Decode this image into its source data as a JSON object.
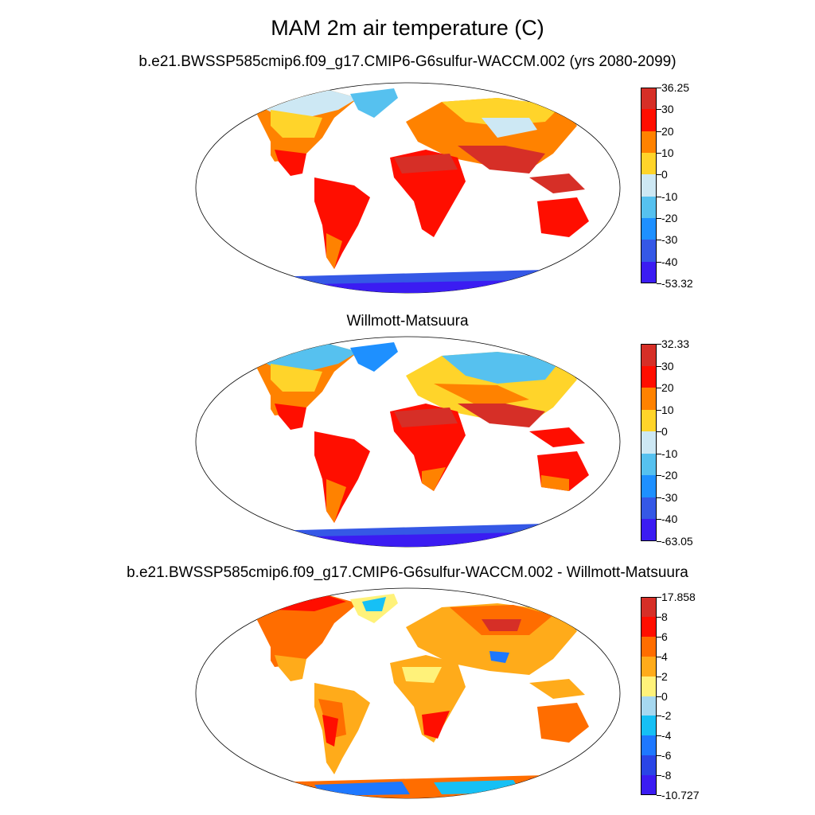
{
  "figure_title": "MAM 2m air temperature (C)",
  "panels": [
    {
      "title": "b.e21.BWSSP585cmip6.f09_g17.CMIP6-G6sulfur-WACCM.002 (yrs 2080-2099)",
      "colorbar": {
        "labels": [
          "36.25",
          "30",
          "20",
          "10",
          "0",
          "-10",
          "-20",
          "-30",
          "-40",
          "-53.32"
        ],
        "colors": [
          "#d62f27",
          "#ff0e00",
          "#ff8200",
          "#ffd42a",
          "#cde8f4",
          "#56c1ef",
          "#1e90ff",
          "#3558e6",
          "#3b1cf2"
        ]
      }
    },
    {
      "title": "Willmott-Matsuura",
      "colorbar": {
        "labels": [
          "32.33",
          "30",
          "20",
          "10",
          "0",
          "-10",
          "-20",
          "-30",
          "-40",
          "-63.05"
        ],
        "colors": [
          "#d62f27",
          "#ff0e00",
          "#ff8200",
          "#ffd42a",
          "#cde8f4",
          "#56c1ef",
          "#1e90ff",
          "#3558e6",
          "#3b1cf2"
        ]
      }
    },
    {
      "title": "b.e21.BWSSP585cmip6.f09_g17.CMIP6-G6sulfur-WACCM.002 - Willmott-Matsuura",
      "colorbar": {
        "labels": [
          "17.858",
          "8",
          "6",
          "4",
          "2",
          "0",
          "-2",
          "-4",
          "-6",
          "-8",
          "-10.727"
        ],
        "colors": [
          "#d62f27",
          "#ff0e00",
          "#ff6d00",
          "#ffab1a",
          "#fff27a",
          "#a6d8f0",
          "#16c0f5",
          "#1e78ff",
          "#2a45e6",
          "#3b1cf2"
        ]
      }
    }
  ]
}
